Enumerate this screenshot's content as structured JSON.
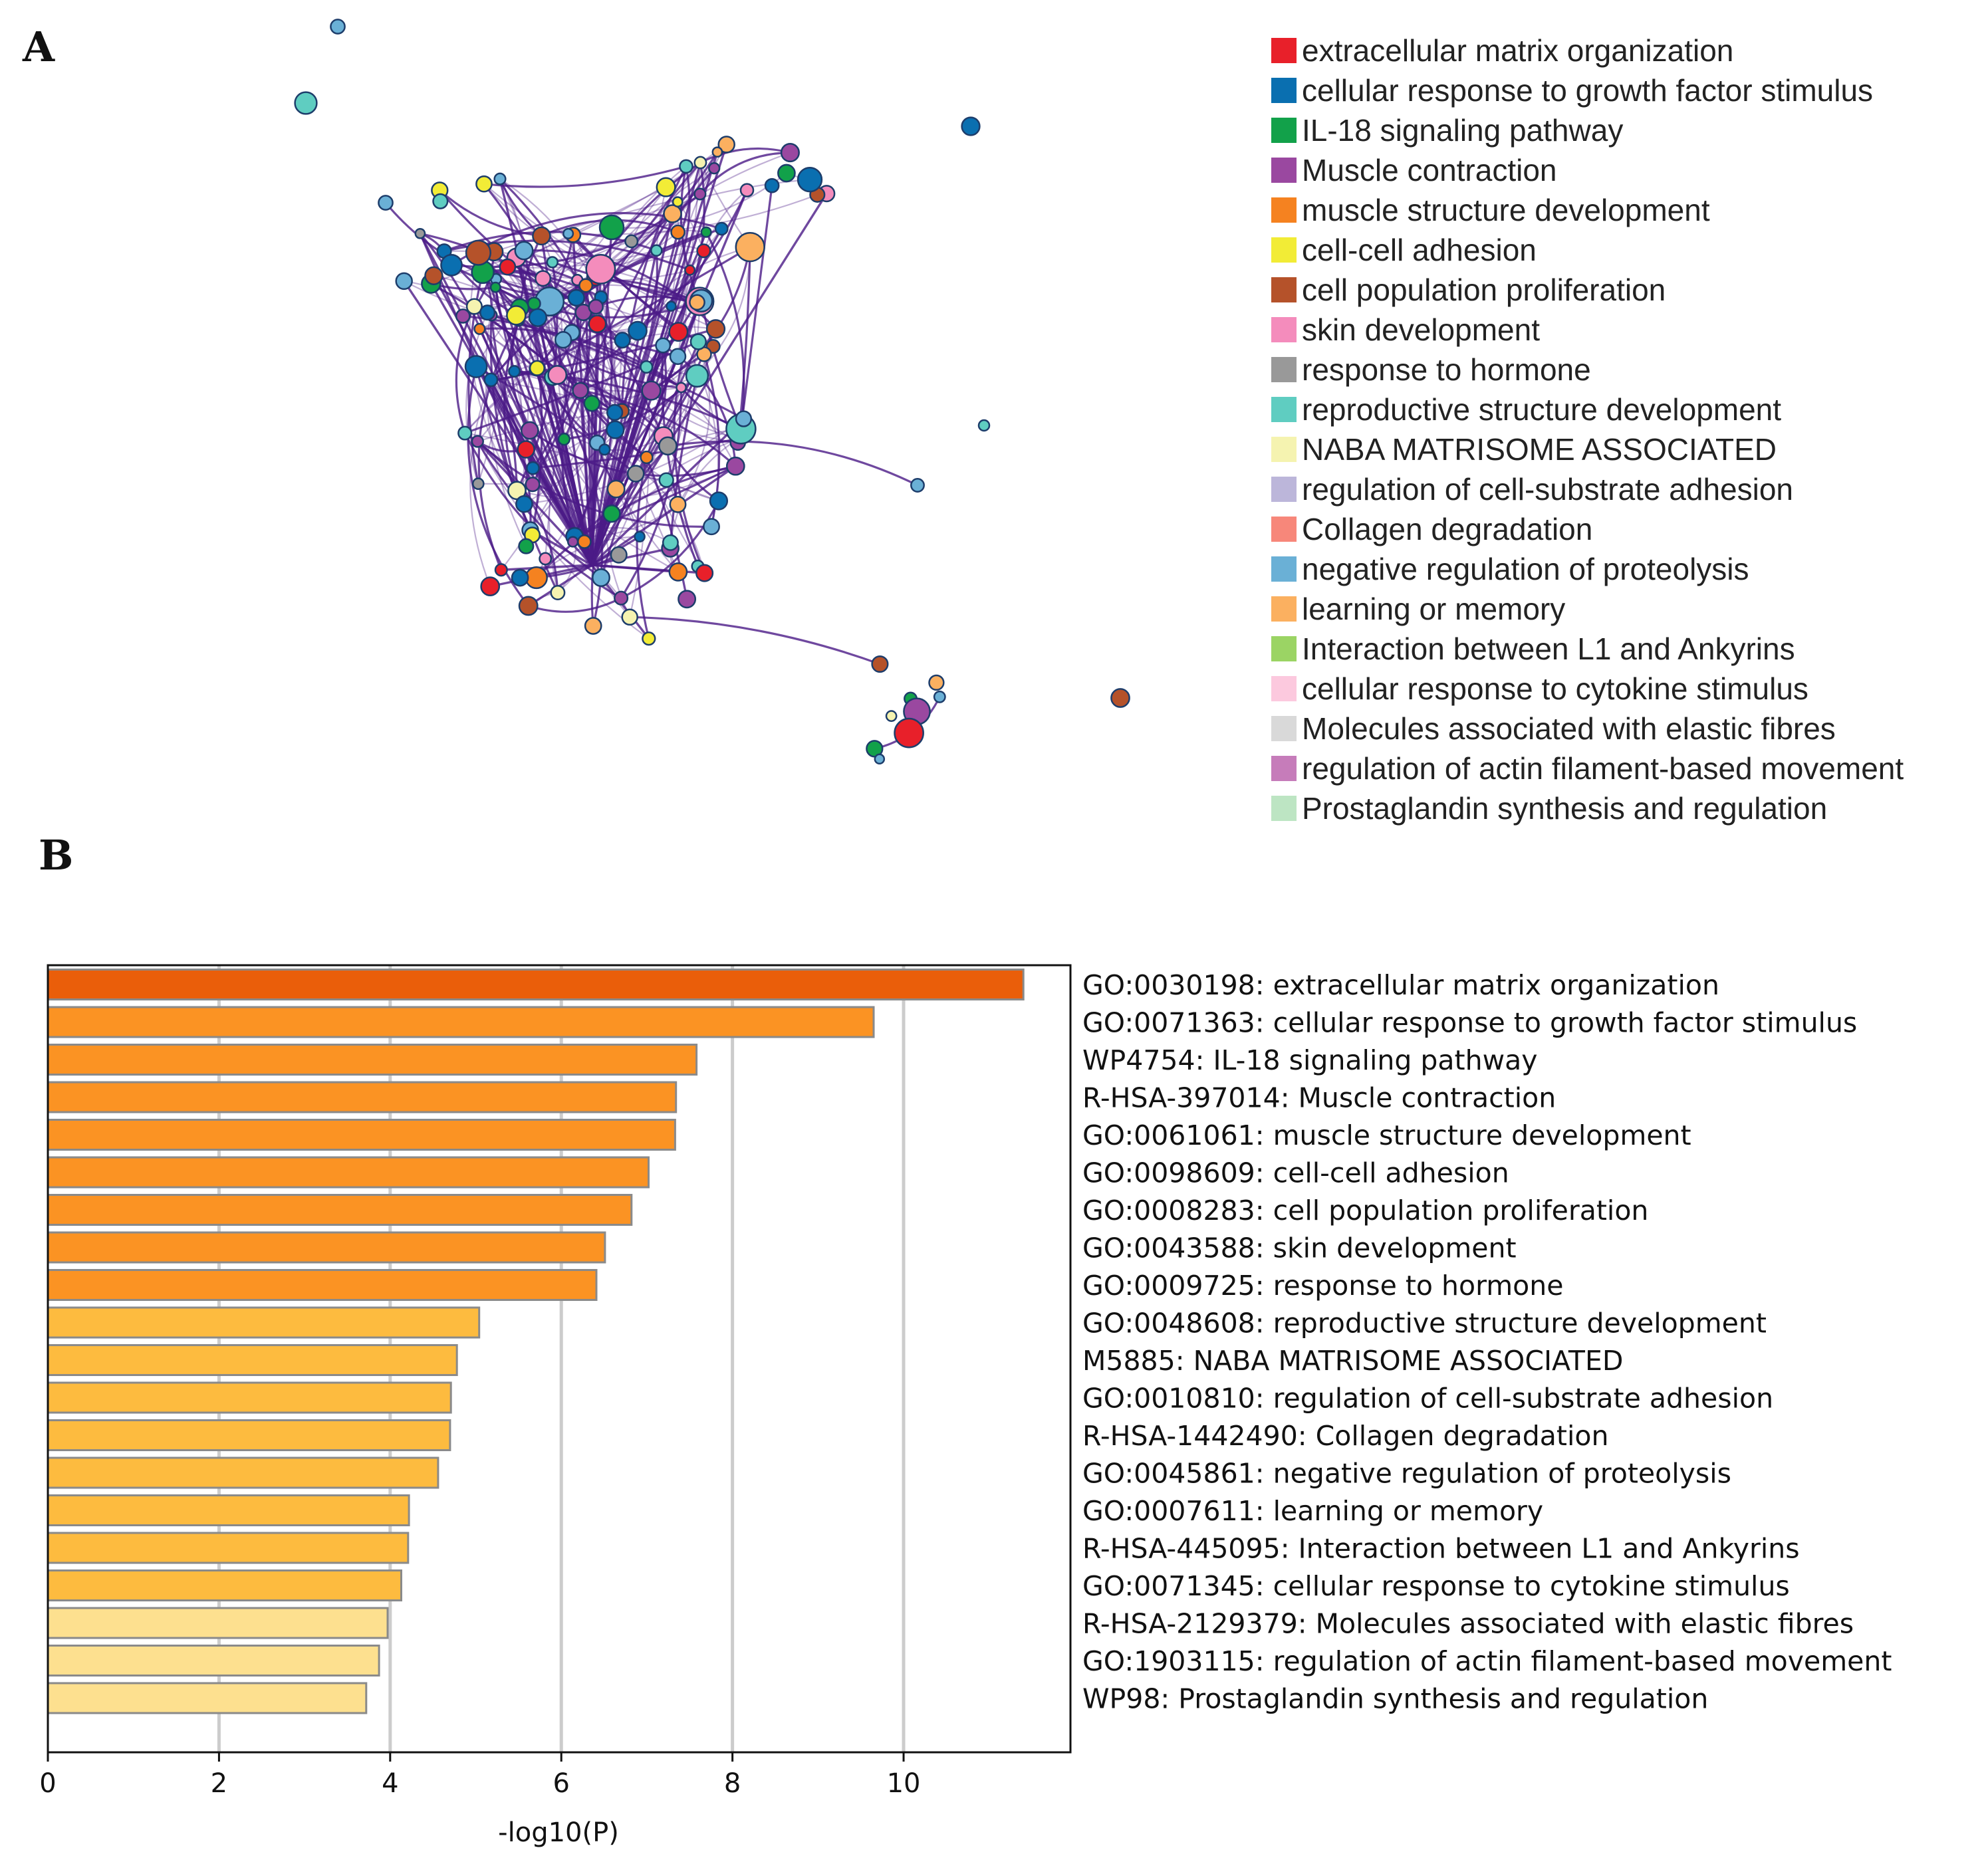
{
  "panel_a": {
    "letter": "A",
    "legend": [
      {
        "label": "extracellular matrix organization",
        "color": "#e8202a"
      },
      {
        "label": "cellular response to growth factor stimulus",
        "color": "#0a6fb0"
      },
      {
        "label": "IL-18 signaling pathway",
        "color": "#12a14a"
      },
      {
        "label": "Muscle contraction",
        "color": "#9a48a0"
      },
      {
        "label": "muscle structure development",
        "color": "#f58220"
      },
      {
        "label": "cell-cell adhesion",
        "color": "#f2ec36"
      },
      {
        "label": "cell population proliferation",
        "color": "#b5522a"
      },
      {
        "label": "skin development",
        "color": "#f48cbc"
      },
      {
        "label": "response to hormone",
        "color": "#999999"
      },
      {
        "label": "reproductive structure development",
        "color": "#5fcdc1"
      },
      {
        "label": "NABA MATRISOME ASSOCIATED",
        "color": "#f5f3b0"
      },
      {
        "label": "regulation of cell-substrate adhesion",
        "color": "#bcb6da"
      },
      {
        "label": "Collagen degradation",
        "color": "#f7877a"
      },
      {
        "label": "negative regulation of proteolysis",
        "color": "#6ab0d6"
      },
      {
        "label": "learning or memory",
        "color": "#fbb060"
      },
      {
        "label": "Interaction between L1 and Ankyrins",
        "color": "#9bd464"
      },
      {
        "label": "cellular response to cytokine stimulus",
        "color": "#fcc9de"
      },
      {
        "label": "Molecules associated with elastic fibres",
        "color": "#d9d9d9"
      },
      {
        "label": "regulation of actin filament-based movement",
        "color": "#c67cba"
      },
      {
        "label": "Prostaglandin synthesis and regulation",
        "color": "#bde5c3"
      }
    ]
  },
  "panel_b": {
    "letter": "B"
  },
  "colors": {
    "edge": "#4b1a87",
    "bar_dark": "#ea5e0a",
    "bar_mid": "#fb9323",
    "bar_light": "#fdbb3f",
    "bar_pale": "#fde08f",
    "bar_edge": "#8a8a8a",
    "grid": "#cccccc"
  },
  "chart_data": {
    "type": "bar",
    "orientation": "horizontal",
    "categories": [
      "GO:0030198: extracellular matrix organization",
      "GO:0071363: cellular response to growth factor stimulus",
      "WP4754: IL-18 signaling pathway",
      "R-HSA-397014: Muscle contraction",
      "GO:0061061: muscle structure development",
      "GO:0098609: cell-cell adhesion",
      "GO:0008283: cell population proliferation",
      "GO:0043588: skin development",
      "GO:0009725: response to hormone",
      "GO:0048608: reproductive structure development",
      "M5885: NABA MATRISOME ASSOCIATED",
      "GO:0010810: regulation of cell-substrate adhesion",
      "R-HSA-1442490: Collagen degradation",
      "GO:0045861: negative regulation of proteolysis",
      "GO:0007611: learning or memory",
      "R-HSA-445095: Interaction between L1 and Ankyrins",
      "GO:0071345: cellular response to cytokine stimulus",
      "R-HSA-2129379: Molecules associated with elastic fibres",
      "GO:1903115: regulation of actin filament-based movement",
      "WP98: Prostaglandin synthesis and regulation"
    ],
    "values": [
      11.4,
      9.65,
      7.58,
      7.34,
      7.33,
      7.02,
      6.82,
      6.51,
      6.41,
      5.04,
      4.78,
      4.71,
      4.7,
      4.56,
      4.22,
      4.21,
      4.13,
      3.97,
      3.87,
      3.72
    ],
    "xlabel": "-log10(P)",
    "xlim": [
      0,
      11.95
    ],
    "xticks": [
      0,
      2,
      4,
      6,
      8,
      10
    ],
    "grid": "vertical"
  }
}
